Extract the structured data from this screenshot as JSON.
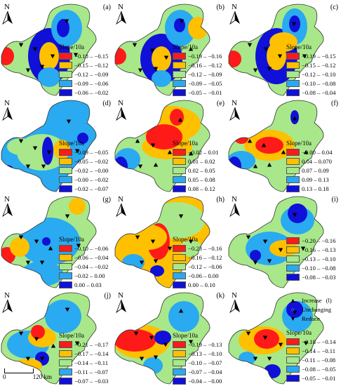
{
  "colors": [
    "#ff1a1a",
    "#ffc000",
    "#a8e88a",
    "#2aaaf0",
    "#1010d8"
  ],
  "panels": [
    {
      "label": "(a)",
      "legend_title": "Slope/10a",
      "ranges": [
        "−0.18 – −0.15",
        "−0.15 – −0.12",
        "−0.12 – −0.09",
        "−0.09 – −0.06",
        "−0.06 – −0.02"
      ],
      "variant": 0
    },
    {
      "label": "(b)",
      "legend_title": "Slope/10a",
      "ranges": [
        "−0.19 – −0.16",
        "−0.16 – −0.12",
        "−0.12 – −0.09",
        "−0.09 – −0.05",
        "−0.05 – −0.01"
      ],
      "variant": 1
    },
    {
      "label": "(c)",
      "legend_title": "Slope/10a",
      "ranges": [
        "−0.19 – −0.15",
        "−0.15 – −0.12",
        "−0.12 – −0.10",
        "−0.10 – −0.08",
        "−0.08 – −0.04"
      ],
      "variant": 2
    },
    {
      "label": "(d)",
      "legend_title": "Slope/10a",
      "ranges": [
        "−0.09 – −0.05",
        "−0.05 – −0.02",
        "−0.02 – −0.00",
        "−0.00 – −0.02",
        "−0.02 – −0.07"
      ],
      "variant": 3
    },
    {
      "label": "(e)",
      "legend_title": "Slope/10a",
      "ranges": [
        "−0.02 – 0.01",
        "0.01 – 0.02",
        "0.02 – 0.05",
        "0.05 – 0.08",
        "0.08 – 0.12"
      ],
      "variant": 4
    },
    {
      "label": "(f)",
      "legend_title": "Slope/10a",
      "ranges": [
        "−0.00 – 0.04",
        "0.04 – 0.070",
        "0.07 – 0.09",
        "0.09 – 0.13",
        "0.13 – 0.18"
      ],
      "variant": 5
    },
    {
      "label": "(g)",
      "legend_title": "Slope/10a",
      "ranges": [
        "−0.10 – −0.06",
        "−0.06 – −0.04",
        "−0.04 – −0.02",
        "−0.02 – 0.00",
        "0.00 – 0.03"
      ],
      "variant": 6
    },
    {
      "label": "(h)",
      "legend_title": "Slope/10a",
      "ranges": [
        "−0.23 – −0.16",
        "−0.16 – −0.12",
        "−0.12 – −0.06",
        "−0.06 – 0.00",
        "0.00 – 0.10"
      ],
      "variant": 7
    },
    {
      "label": "(i)",
      "legend_title": "",
      "ranges": [
        "−0.20 – −0.16",
        "−0.16 – −0.13",
        "−0.13 – −0.10",
        "−0.10 – −0.08",
        "−0.08 – −0.03"
      ],
      "variant": 8
    },
    {
      "label": "(j)",
      "legend_title": "Slope/10a",
      "ranges": [
        "−0.21 – −0.17",
        "−0.17 – −0.14",
        "−0.14 – −0.11",
        "−0.11 – −0.07",
        "−0.07 – −0.03"
      ],
      "variant": 9
    },
    {
      "label": "(k)",
      "legend_title": "Slope/10a",
      "ranges": [
        "−0.19 – −0.13",
        "−0.13 – −0.10",
        "−0.10 – −0.07",
        "−0.07 – −0.04",
        "−0.04 – −0.00"
      ],
      "variant": 10
    },
    {
      "label": "",
      "legend_title": "Slope/10a",
      "ranges": [
        "−0.18 – −0.14",
        "−0.14 – −0.11",
        "−0.11 – −0.08",
        "−0.08 – −0.05",
        "−0.05 – −0.01"
      ],
      "variant": 11
    }
  ],
  "compass_letter": "N",
  "trend_key": {
    "increase": "Increase",
    "increase_panel_label": "(l)",
    "unchanging": "Unchanging",
    "reduce": "Reduce"
  },
  "scale": {
    "start": "0",
    "end": "120 km"
  }
}
